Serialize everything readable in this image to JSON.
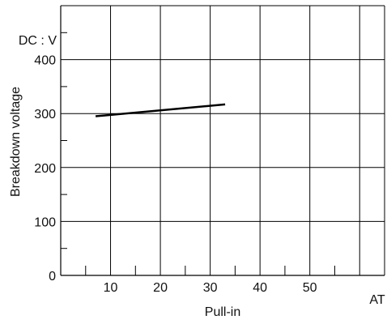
{
  "chart_data": {
    "type": "line",
    "title": "",
    "xlabel": "Pull-in",
    "ylabel": "Breakdown voltage",
    "x_unit": "AT",
    "y_unit": "DC : V",
    "xlim": [
      0,
      65
    ],
    "ylim": [
      0,
      500
    ],
    "x_major_ticks": [
      10,
      20,
      30,
      40,
      50
    ],
    "x_minor_ticks": [
      5,
      15,
      25,
      35,
      45,
      55
    ],
    "y_major_ticks": [
      0,
      100,
      200,
      300,
      400
    ],
    "y_minor_ticks": [
      50,
      150,
      250,
      350,
      450
    ],
    "x_tick_labels": [
      "10",
      "20",
      "30",
      "40",
      "50"
    ],
    "y_tick_labels": [
      "0",
      "100",
      "200",
      "300",
      "400"
    ],
    "grid": true,
    "series": [
      {
        "x": [
          7,
          33
        ],
        "y": [
          295,
          317
        ]
      }
    ],
    "colors": {
      "line": "#000000",
      "grid": "#000000",
      "text": "#111111"
    }
  }
}
